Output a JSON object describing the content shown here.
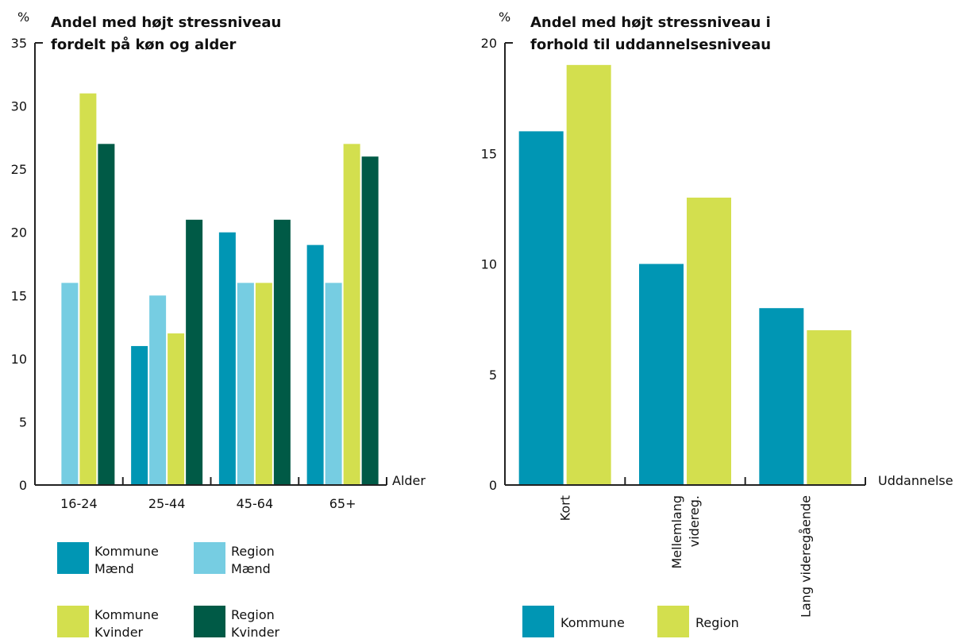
{
  "chart_data": [
    {
      "type": "bar",
      "title_lines": [
        "Andel med højt stressniveau",
        "fordelt på køn og alder"
      ],
      "ylabel": "%",
      "xlabel": "Alder",
      "ylim": [
        0,
        35
      ],
      "yticks": [
        0,
        5,
        10,
        15,
        20,
        25,
        30,
        35
      ],
      "categories": [
        "16-24",
        "25-44",
        "45-64",
        "65+"
      ],
      "series": [
        {
          "name_lines": [
            "Kommune",
            "Mænd"
          ],
          "color": "#0096b4",
          "values": [
            0,
            11,
            20,
            19
          ]
        },
        {
          "name_lines": [
            "Region",
            "Mænd"
          ],
          "color": "#76cde2",
          "values": [
            16,
            15,
            16,
            16
          ]
        },
        {
          "name_lines": [
            "Kommune",
            "Kvinder"
          ],
          "color": "#d3df4e",
          "values": [
            31,
            12,
            16,
            27
          ]
        },
        {
          "name_lines": [
            "Region",
            "Kvinder"
          ],
          "color": "#005a46",
          "values": [
            27,
            21,
            21,
            26
          ]
        }
      ]
    },
    {
      "type": "bar",
      "title_lines": [
        "Andel med højt stressniveau i",
        "forhold til uddannelsesniveau"
      ],
      "ylabel": "%",
      "xlabel": "Uddannelse",
      "ylim": [
        0,
        20
      ],
      "yticks": [
        0,
        5,
        10,
        15,
        20
      ],
      "categories": [
        [
          "Kort"
        ],
        [
          "Mellemlang",
          "videreg."
        ],
        [
          "Lang videregående"
        ]
      ],
      "series": [
        {
          "name_lines": [
            "Kommune"
          ],
          "color": "#0096b4",
          "values": [
            16,
            10,
            8
          ]
        },
        {
          "name_lines": [
            "Region"
          ],
          "color": "#d3df4e",
          "values": [
            19,
            13,
            7
          ]
        }
      ]
    }
  ]
}
